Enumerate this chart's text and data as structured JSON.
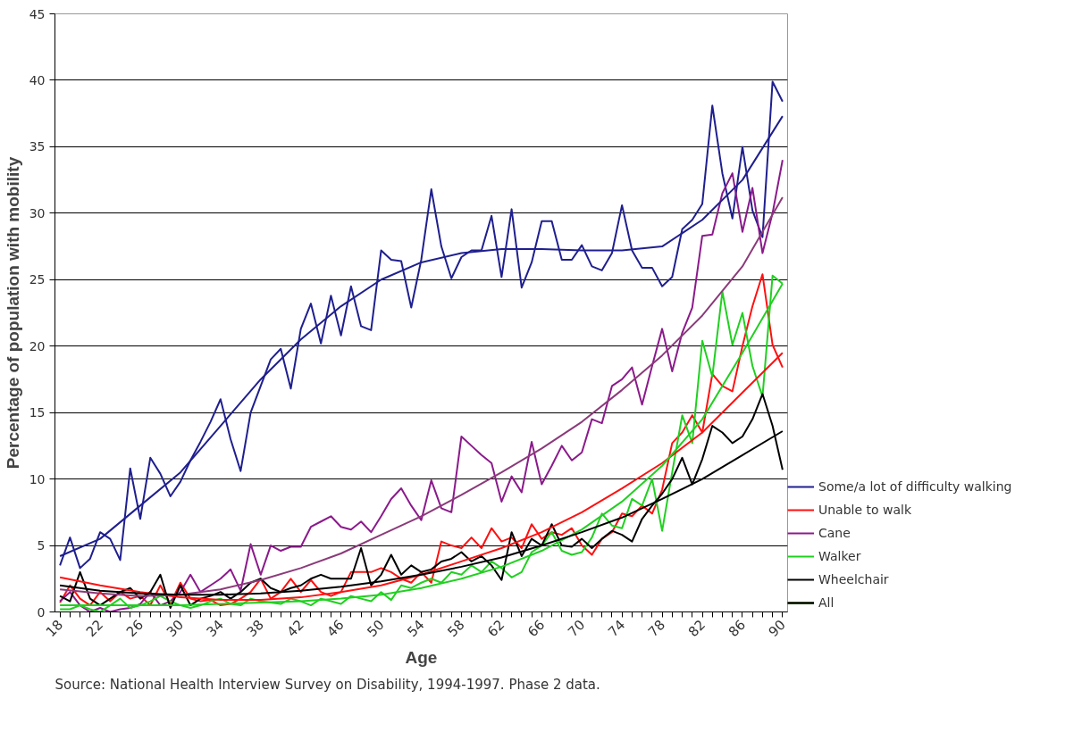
{
  "chart_data": {
    "type": "line",
    "xlabel": "Age",
    "ylabel": "Percentage of population with mobility",
    "annotations": [
      "Source: National Health Interview Survey on Disability, 1994-1997. Phase 2 data."
    ],
    "x": [
      18,
      19,
      20,
      21,
      22,
      23,
      24,
      25,
      26,
      27,
      28,
      29,
      30,
      31,
      32,
      33,
      34,
      35,
      36,
      37,
      38,
      39,
      40,
      41,
      42,
      43,
      44,
      45,
      46,
      47,
      48,
      49,
      50,
      51,
      52,
      53,
      54,
      55,
      56,
      57,
      58,
      59,
      60,
      61,
      62,
      63,
      64,
      65,
      66,
      67,
      68,
      69,
      70,
      71,
      72,
      73,
      74,
      75,
      76,
      77,
      78,
      79,
      80,
      81,
      82,
      83,
      84,
      85,
      86,
      87,
      88,
      89,
      90
    ],
    "xlim": [
      17.5,
      90.5
    ],
    "ylim": [
      0,
      45
    ],
    "yticks": [
      0,
      5,
      10,
      15,
      20,
      25,
      30,
      35,
      40,
      45
    ],
    "xticks": [
      18,
      {
        "value": 19,
        "label": null
      },
      {
        "value": 20,
        "label": null
      },
      {
        "value": 21,
        "label": null
      },
      22,
      {
        "value": 23,
        "label": null
      },
      {
        "value": 24,
        "label": null
      },
      {
        "value": 25,
        "label": null
      },
      26,
      {
        "value": 27,
        "label": null
      },
      {
        "value": 28,
        "label": null
      },
      {
        "value": 29,
        "label": null
      },
      30,
      {
        "value": 31,
        "label": null
      },
      {
        "value": 32,
        "label": null
      },
      {
        "value": 33,
        "label": null
      },
      34,
      {
        "value": 35,
        "label": null
      },
      {
        "value": 36,
        "label": null
      },
      {
        "value": 37,
        "label": null
      },
      38,
      {
        "value": 39,
        "label": null
      },
      {
        "value": 40,
        "label": null
      },
      {
        "value": 41,
        "label": null
      },
      42,
      {
        "value": 43,
        "label": null
      },
      {
        "value": 44,
        "label": null
      },
      {
        "value": 45,
        "label": null
      },
      46,
      {
        "value": 47,
        "label": null
      },
      {
        "value": 48,
        "label": null
      },
      {
        "value": 49,
        "label": null
      },
      50,
      {
        "value": 51,
        "label": null
      },
      {
        "value": 52,
        "label": null
      },
      {
        "value": 53,
        "label": null
      },
      54,
      {
        "value": 55,
        "label": null
      },
      {
        "value": 56,
        "label": null
      },
      {
        "value": 57,
        "label": null
      },
      58,
      {
        "value": 59,
        "label": null
      },
      {
        "value": 60,
        "label": null
      },
      {
        "value": 61,
        "label": null
      },
      62,
      {
        "value": 63,
        "label": null
      },
      {
        "value": 64,
        "label": null
      },
      {
        "value": 65,
        "label": null
      },
      66,
      {
        "value": 67,
        "label": null
      },
      {
        "value": 68,
        "label": null
      },
      {
        "value": 69,
        "label": null
      },
      70,
      {
        "value": 71,
        "label": null
      },
      {
        "value": 72,
        "label": null
      },
      {
        "value": 73,
        "label": null
      },
      74,
      {
        "value": 75,
        "label": null
      },
      {
        "value": 76,
        "label": null
      },
      {
        "value": 77,
        "label": null
      },
      78,
      {
        "value": 79,
        "label": null
      },
      {
        "value": 80,
        "label": null
      },
      {
        "value": 81,
        "label": null
      },
      82,
      {
        "value": 83,
        "label": null
      },
      {
        "value": 84,
        "label": null
      },
      {
        "value": 85,
        "label": null
      },
      86,
      {
        "value": 87,
        "label": null
      },
      {
        "value": 88,
        "label": null
      },
      {
        "value": 89,
        "label": null
      },
      90
    ],
    "grid": "y",
    "legend": "right",
    "line_style": "solid",
    "series": [
      {
        "name": "Some/a lot of difficulty walking",
        "color": "#1f1f8f",
        "values": [
          3.5,
          5.6,
          3.3,
          4.0,
          6.0,
          5.5,
          3.9,
          10.8,
          7.0,
          11.6,
          10.4,
          8.7,
          9.8,
          11.4,
          12.8,
          14.3,
          16.0,
          13.0,
          10.6,
          15.0,
          17.0,
          19.0,
          19.8,
          16.8,
          21.3,
          23.2,
          20.2,
          23.8,
          20.8,
          24.5,
          21.5,
          21.2,
          27.2,
          26.5,
          26.4,
          22.9,
          26.5,
          31.8,
          27.5,
          25.1,
          26.7,
          27.2,
          27.2,
          29.8,
          25.2,
          30.3,
          24.4,
          26.3,
          29.4,
          29.4,
          26.5,
          26.5,
          27.6,
          26.0,
          25.7,
          27.0,
          30.6,
          27.2,
          25.9,
          25.9,
          24.5,
          25.2,
          28.8,
          29.5,
          30.7,
          38.1,
          33.0,
          29.6,
          35.0,
          30.2,
          28.2,
          39.9,
          38.4
        ]
      },
      {
        "name": "Unable to walk",
        "color": "#ff1010",
        "values": [
          0.7,
          2.0,
          1.0,
          0.5,
          1.5,
          0.8,
          1.5,
          1.0,
          1.2,
          0.5,
          2.0,
          0.6,
          2.2,
          1.0,
          0.8,
          0.9,
          0.5,
          0.6,
          1.0,
          1.5,
          2.5,
          1.0,
          1.5,
          2.5,
          1.5,
          2.4,
          1.5,
          1.2,
          1.5,
          3.0,
          3.0,
          3.0,
          3.3,
          3.0,
          2.5,
          2.2,
          3.0,
          2.2,
          5.3,
          5.0,
          4.8,
          5.6,
          4.8,
          6.3,
          5.3,
          5.6,
          4.8,
          6.6,
          5.5,
          6.0,
          5.8,
          6.3,
          5.0,
          4.3,
          5.5,
          6.0,
          7.4,
          7.2,
          8.0,
          7.4,
          9.2,
          12.7,
          13.5,
          14.8,
          13.5,
          17.9,
          17.0,
          16.6,
          20.0,
          23.0,
          25.4,
          20.1,
          18.4
        ]
      },
      {
        "name": "Cane",
        "color": "#8b1a8b",
        "values": [
          0.8,
          1.5,
          0.5,
          0.0,
          0.3,
          0.0,
          0.2,
          0.3,
          0.6,
          1.5,
          0.5,
          0.8,
          1.5,
          2.8,
          1.5,
          2.0,
          2.5,
          3.2,
          1.6,
          5.1,
          2.8,
          5.0,
          4.6,
          4.9,
          4.9,
          6.4,
          6.8,
          7.2,
          6.4,
          6.2,
          6.8,
          6.0,
          7.2,
          8.5,
          9.3,
          8.0,
          6.9,
          9.9,
          7.8,
          7.5,
          13.2,
          12.5,
          11.8,
          11.2,
          8.3,
          10.2,
          9.0,
          12.8,
          9.6,
          11.0,
          12.5,
          11.4,
          12.0,
          14.5,
          14.2,
          17.0,
          17.5,
          18.4,
          15.6,
          18.5,
          21.3,
          18.1,
          21.0,
          22.9,
          28.3,
          28.4,
          31.5,
          33.0,
          28.6,
          31.9,
          27.0,
          30.0,
          34.0
        ]
      },
      {
        "name": "Walker",
        "color": "#20d020",
        "values": [
          0.2,
          0.2,
          0.5,
          0.2,
          0.0,
          0.5,
          1.0,
          0.3,
          0.5,
          0.8,
          1.2,
          0.8,
          0.5,
          0.3,
          0.5,
          0.8,
          1.0,
          0.6,
          0.5,
          1.0,
          0.8,
          0.7,
          0.6,
          1.0,
          0.8,
          0.5,
          1.0,
          0.8,
          0.6,
          1.2,
          1.0,
          0.8,
          1.5,
          0.9,
          2.0,
          1.8,
          2.2,
          2.5,
          2.2,
          3.0,
          2.8,
          3.5,
          3.0,
          3.8,
          3.3,
          2.6,
          3.0,
          4.5,
          5.0,
          6.0,
          4.6,
          4.3,
          4.5,
          5.6,
          7.4,
          6.5,
          6.3,
          8.5,
          8.0,
          10.0,
          6.1,
          10.5,
          14.8,
          12.7,
          20.4,
          17.7,
          24.1,
          20.1,
          22.5,
          18.5,
          16.2,
          25.3,
          24.7
        ]
      },
      {
        "name": "Wheelchair",
        "color": "#000000",
        "values": [
          1.2,
          0.8,
          3.0,
          1.0,
          0.5,
          1.0,
          1.5,
          1.8,
          1.0,
          1.5,
          2.8,
          0.3,
          2.0,
          0.5,
          1.0,
          1.2,
          1.5,
          1.0,
          1.5,
          2.2,
          2.5,
          1.8,
          1.5,
          1.8,
          2.0,
          2.5,
          2.8,
          2.5,
          2.5,
          2.5,
          4.8,
          2.0,
          2.8,
          4.3,
          2.8,
          3.5,
          3.0,
          3.2,
          3.8,
          4.0,
          4.5,
          3.8,
          4.2,
          3.5,
          2.4,
          6.0,
          4.2,
          5.5,
          5.0,
          6.6,
          5.0,
          4.9,
          5.5,
          4.8,
          5.5,
          6.1,
          5.8,
          5.3,
          7.0,
          8.0,
          8.9,
          10.0,
          11.6,
          9.6,
          11.5,
          14.0,
          13.5,
          12.7,
          13.2,
          14.5,
          16.4,
          14.0,
          10.7
        ]
      },
      {
        "name": "All",
        "color": "#1f1f8f",
        "x": [
          18,
          22,
          26,
          30,
          34,
          38,
          42,
          46,
          50,
          54,
          58,
          62,
          66,
          70,
          74,
          78,
          82,
          86,
          90
        ],
        "values": [
          4.2,
          5.5,
          8.0,
          10.5,
          14.0,
          17.5,
          20.5,
          23.0,
          25.0,
          26.3,
          27.0,
          27.3,
          27.3,
          27.2,
          27.2,
          27.5,
          29.5,
          32.5,
          37.3
        ]
      },
      {
        "color": "#ff1010",
        "x": [
          18,
          22,
          26,
          30,
          34,
          38,
          42,
          46,
          50,
          54,
          58,
          62,
          66,
          70,
          74,
          78,
          82,
          86,
          90
        ],
        "values": [
          2.6,
          2.0,
          1.5,
          1.1,
          0.9,
          0.9,
          1.1,
          1.5,
          2.0,
          2.8,
          3.8,
          4.8,
          6.0,
          7.5,
          9.3,
          11.2,
          13.5,
          16.5,
          19.5
        ]
      },
      {
        "color": "#8b3a7a",
        "x": [
          18,
          22,
          26,
          30,
          34,
          38,
          42,
          46,
          50,
          54,
          58,
          62,
          66,
          70,
          74,
          78,
          82,
          86,
          90
        ],
        "values": [
          1.7,
          1.4,
          1.2,
          1.3,
          1.7,
          2.4,
          3.3,
          4.4,
          5.8,
          7.2,
          8.8,
          10.5,
          12.3,
          14.3,
          16.7,
          19.3,
          22.3,
          26.0,
          31.2
        ]
      },
      {
        "color": "#20d020",
        "x": [
          18,
          22,
          26,
          30,
          34,
          38,
          42,
          46,
          50,
          54,
          58,
          62,
          66,
          70,
          74,
          78,
          82,
          86,
          90
        ],
        "values": [
          0.5,
          0.5,
          0.5,
          0.5,
          0.6,
          0.7,
          0.8,
          1.0,
          1.3,
          1.8,
          2.5,
          3.4,
          4.6,
          6.2,
          8.3,
          11.0,
          14.5,
          19.5,
          24.7
        ]
      },
      {
        "color": "#000000",
        "x": [
          18,
          22,
          26,
          30,
          34,
          38,
          42,
          46,
          50,
          54,
          58,
          62,
          66,
          70,
          74,
          78,
          82,
          86,
          90
        ],
        "values": [
          2.0,
          1.6,
          1.4,
          1.3,
          1.3,
          1.4,
          1.6,
          1.9,
          2.3,
          2.8,
          3.4,
          4.1,
          5.0,
          6.0,
          7.1,
          8.5,
          10.0,
          11.8,
          13.6
        ]
      }
    ]
  }
}
